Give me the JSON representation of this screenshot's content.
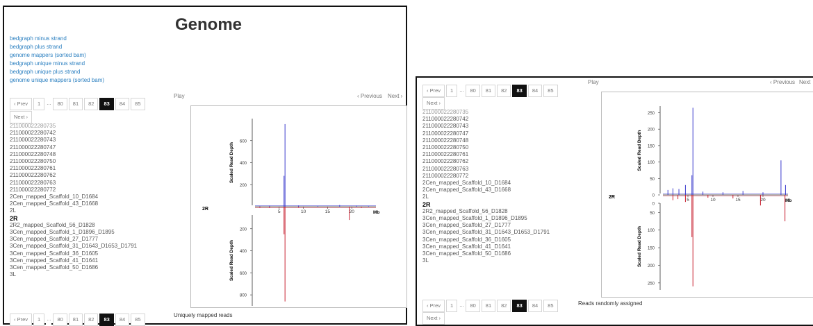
{
  "left": {
    "title": "Genome",
    "links": [
      "bedgraph minus strand",
      "bedgraph plus strand",
      "genome mappers (sorted bam)",
      "bedgraph unique minus strand",
      "bedgraph unique plus strand",
      "genome unique mappers (sorted bam)"
    ],
    "pager": {
      "prev": "‹ Prev",
      "first": "1",
      "ellipsis": "...",
      "pages": [
        "80",
        "81",
        "82",
        "83",
        "84",
        "85"
      ],
      "active": "83",
      "next": "Next ›"
    },
    "play_label": "Play",
    "nav_previous": "‹ Previous",
    "nav_next": "Next ›",
    "items": [
      "211000022280735",
      "211000022280742",
      "211000022280743",
      "211000022280747",
      "211000022280748",
      "211000022280750",
      "211000022280761",
      "211000022280762",
      "211000022280763",
      "211000022280772",
      "2Cen_mapped_Scaffold_10_D1684",
      "2Cen_mapped_Scaffold_43_D1668",
      "2L",
      "2R",
      "2R2_mapped_Scaffold_56_D1828",
      "3Cen_mapped_Scaffold_1_D1896_D1895",
      "3Cen_mapped_Scaffold_27_D1777",
      "3Cen_mapped_Scaffold_31_D1643_D1653_D1791",
      "3Cen_mapped_Scaffold_36_D1605",
      "3Cen_mapped_Scaffold_41_D1641",
      "3Cen_mapped_Scaffold_50_D1686",
      "3L"
    ],
    "selected_item": "2R",
    "caption": "Uniquely mapped reads"
  },
  "right": {
    "pager": {
      "prev": "‹ Prev",
      "first": "1",
      "ellipsis": "...",
      "pages": [
        "80",
        "81",
        "82",
        "83",
        "84",
        "85"
      ],
      "active": "83",
      "next": "Next ›"
    },
    "play_label": "Play",
    "nav_previous": "‹ Previous",
    "nav_next": "Next",
    "items": [
      "211000022280735",
      "211000022280742",
      "211000022280743",
      "211000022280747",
      "211000022280748",
      "211000022280750",
      "211000022280761",
      "211000022280762",
      "211000022280763",
      "211000022280772",
      "2Cen_mapped_Scaffold_10_D1684",
      "2Cen_mapped_Scaffold_43_D1668",
      "2L",
      "2R",
      "2R2_mapped_Scaffold_56_D1828",
      "3Cen_mapped_Scaffold_1_D1896_D1895",
      "3Cen_mapped_Scaffold_27_D1777",
      "3Cen_mapped_Scaffold_31_D1643_D1653_D1791",
      "3Cen_mapped_Scaffold_36_D1605",
      "3Cen_mapped_Scaffold_41_D1641",
      "3Cen_mapped_Scaffold_50_D1686",
      "3L"
    ],
    "selected_item": "2R",
    "caption": "Reads randomly assigned"
  },
  "chart_data": [
    {
      "type": "line",
      "chromosome_label": "2R",
      "ylabel": "Scaled Read Depth",
      "xlabel": "Mb",
      "x_ticks": [
        5,
        10,
        15,
        20
      ],
      "xlim": [
        0,
        25
      ],
      "plus": {
        "ylim": [
          0,
          800
        ],
        "y_ticks": [
          200,
          400,
          600
        ],
        "color": "#3a3acc",
        "points": [
          [
            6.2,
            750
          ],
          [
            6.0,
            280
          ],
          [
            1.0,
            5
          ],
          [
            3.0,
            8
          ],
          [
            9.0,
            10
          ],
          [
            13.0,
            6
          ],
          [
            17.5,
            15
          ],
          [
            21.0,
            8
          ],
          [
            23.5,
            5
          ]
        ]
      },
      "minus": {
        "ylim": [
          0,
          900
        ],
        "y_ticks": [
          200,
          400,
          600,
          800
        ],
        "color": "#c82030",
        "points": [
          [
            6.2,
            860
          ],
          [
            6.0,
            250
          ],
          [
            1.0,
            10
          ],
          [
            3.0,
            12
          ],
          [
            9.0,
            8
          ],
          [
            19.5,
            120
          ],
          [
            22.0,
            10
          ]
        ]
      }
    },
    {
      "type": "line",
      "chromosome_label": "2R",
      "ylabel": "Scaled Read Depth",
      "xlabel": "Mb",
      "x_ticks": [
        5,
        10,
        15,
        20
      ],
      "xlim": [
        0,
        25
      ],
      "plus": {
        "ylim": [
          0,
          270
        ],
        "y_ticks": [
          0,
          50,
          100,
          150,
          200,
          250
        ],
        "color": "#3a3acc",
        "points": [
          [
            6.0,
            265
          ],
          [
            5.8,
            60
          ],
          [
            4.5,
            30
          ],
          [
            2.0,
            20
          ],
          [
            1.0,
            15
          ],
          [
            3.2,
            18
          ],
          [
            8.0,
            10
          ],
          [
            12.0,
            8
          ],
          [
            16.0,
            12
          ],
          [
            20.0,
            8
          ],
          [
            23.6,
            105
          ],
          [
            24.5,
            30
          ]
        ]
      },
      "minus": {
        "ylim": [
          0,
          270
        ],
        "y_ticks": [
          0,
          50,
          100,
          150,
          200,
          250
        ],
        "color": "#c82030",
        "points": [
          [
            6.0,
            260
          ],
          [
            5.8,
            120
          ],
          [
            4.5,
            20
          ],
          [
            2.0,
            15
          ],
          [
            3.0,
            12
          ],
          [
            9.0,
            8
          ],
          [
            14.0,
            10
          ],
          [
            19.5,
            30
          ],
          [
            24.4,
            75
          ]
        ]
      }
    }
  ]
}
